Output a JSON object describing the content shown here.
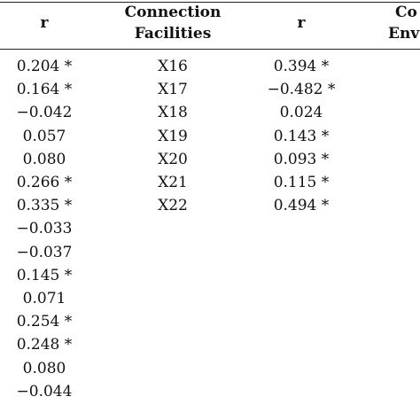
{
  "headers": {
    "col1": "r",
    "col2_line1": "Connection",
    "col2_line2": "Facilities",
    "col3": "r",
    "col4_line1": "Co",
    "col4_line2": "Env"
  },
  "col1_r": [
    "0.204 *",
    "0.164 *",
    "−0.042",
    "0.057",
    "0.080",
    "0.266 *",
    "0.335 *",
    "−0.033",
    "−0.037",
    "0.145 *",
    "0.071",
    "0.254 *",
    "0.248 *",
    "0.080",
    "−0.044"
  ],
  "connection_facilities": [
    "X16",
    "X17",
    "X18",
    "X19",
    "X20",
    "X21",
    "X22"
  ],
  "col3_r": [
    "0.394 *",
    "−0.482 *",
    "0.024",
    "0.143 *",
    "0.093 *",
    "0.115 *",
    "0.494 *"
  ]
}
